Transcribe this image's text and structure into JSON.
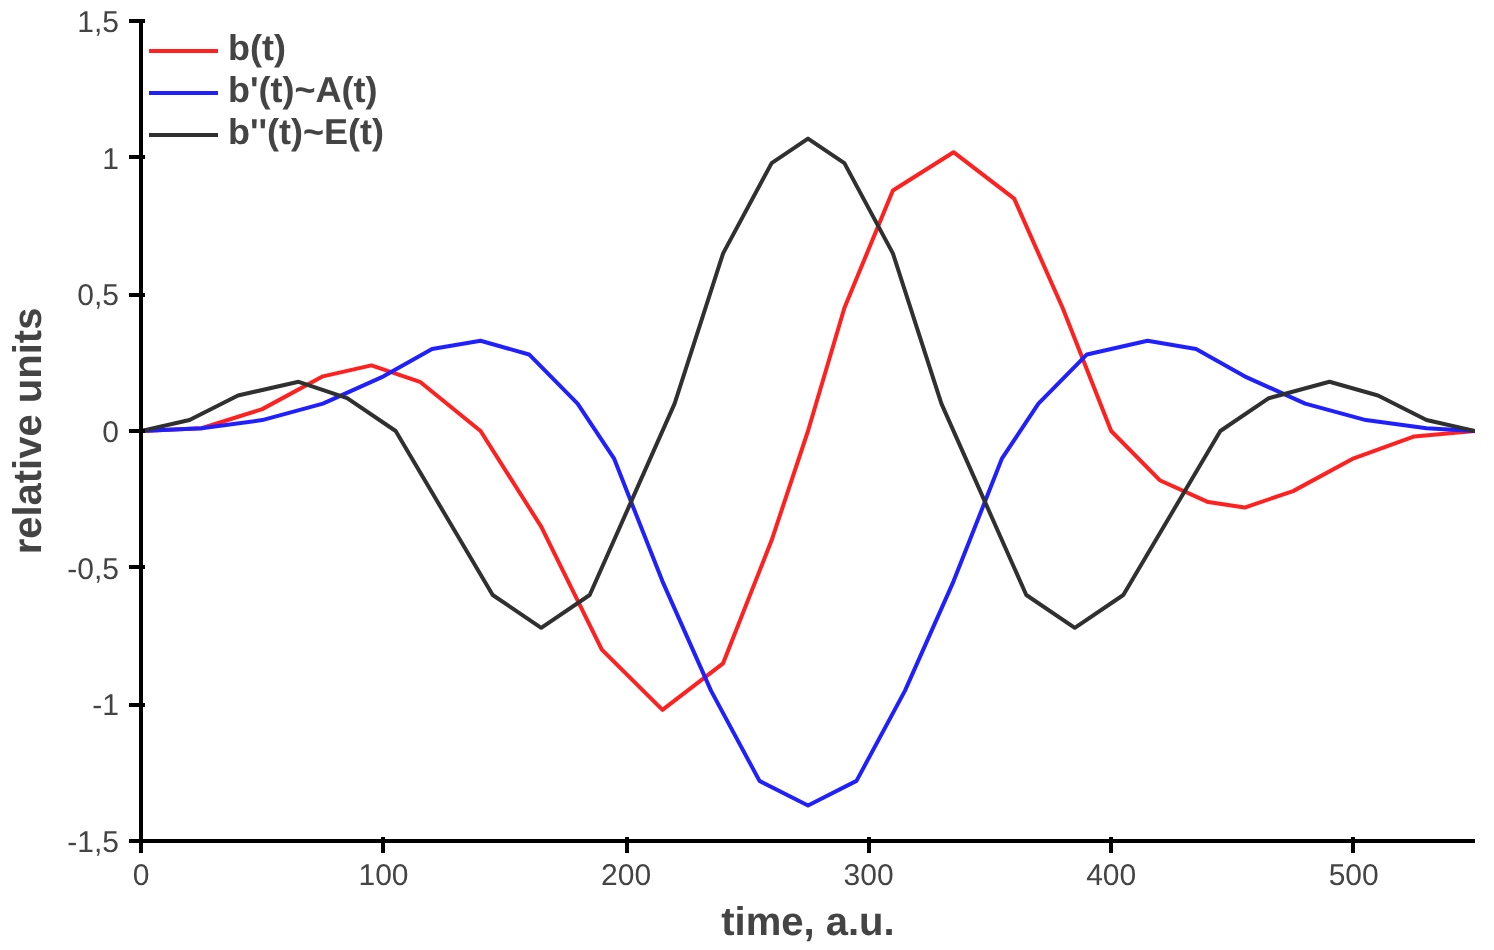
{
  "chart_data": {
    "type": "line",
    "xlabel": "time, a.u.",
    "ylabel": "relative units",
    "xlim": [
      0,
      550
    ],
    "ylim": [
      -1.5,
      1.5
    ],
    "xticks": [
      0,
      100,
      200,
      300,
      400,
      500
    ],
    "yticks": [
      {
        "value": -1.5,
        "label": "-1,5"
      },
      {
        "value": -1,
        "label": "-1"
      },
      {
        "value": -0.5,
        "label": "-0,5"
      },
      0,
      {
        "value": 0.5,
        "label": "0,5"
      },
      1,
      {
        "value": 1.5,
        "label": "1,5"
      }
    ],
    "grid": false,
    "legend": "top left",
    "marker": "none",
    "line_style": "solid",
    "series": [
      {
        "name": "b(t)",
        "color": "#ff2020",
        "x": [
          0,
          25,
          50,
          75,
          95,
          115,
          140,
          165,
          190,
          215,
          240,
          260,
          275,
          290,
          310,
          335,
          360,
          380,
          400,
          420,
          440,
          455,
          475,
          500,
          525,
          550
        ],
        "values": [
          0,
          0.01,
          0.08,
          0.2,
          0.24,
          0.18,
          0,
          -0.35,
          -0.8,
          -1.02,
          -0.85,
          -0.4,
          0,
          0.45,
          0.88,
          1.02,
          0.85,
          0.45,
          0,
          -0.18,
          -0.26,
          -0.28,
          -0.22,
          -0.1,
          -0.02,
          0
        ]
      },
      {
        "name": "b'(t)~A(t)",
        "color": "#2020ff",
        "x": [
          0,
          25,
          50,
          75,
          100,
          120,
          140,
          160,
          180,
          195,
          215,
          235,
          255,
          275,
          295,
          315,
          335,
          355,
          370,
          390,
          415,
          435,
          455,
          480,
          505,
          530,
          550
        ],
        "values": [
          0,
          0.01,
          0.04,
          0.1,
          0.2,
          0.3,
          0.33,
          0.28,
          0.1,
          -0.1,
          -0.55,
          -0.95,
          -1.28,
          -1.37,
          -1.28,
          -0.95,
          -0.55,
          -0.1,
          0.1,
          0.28,
          0.33,
          0.3,
          0.2,
          0.1,
          0.04,
          0.01,
          0
        ]
      },
      {
        "name": "b''(t)~E(t)",
        "color": "#303030",
        "x": [
          0,
          20,
          40,
          65,
          85,
          105,
          125,
          145,
          165,
          185,
          205,
          220,
          240,
          260,
          275,
          290,
          310,
          330,
          345,
          365,
          385,
          405,
          425,
          445,
          465,
          490,
          510,
          530,
          550
        ],
        "values": [
          0,
          0.04,
          0.13,
          0.18,
          0.12,
          0,
          -0.3,
          -0.6,
          -0.72,
          -0.6,
          -0.2,
          0.1,
          0.65,
          0.98,
          1.07,
          0.98,
          0.65,
          0.1,
          -0.2,
          -0.6,
          -0.72,
          -0.6,
          -0.3,
          0,
          0.12,
          0.18,
          0.13,
          0.04,
          0
        ]
      }
    ]
  }
}
